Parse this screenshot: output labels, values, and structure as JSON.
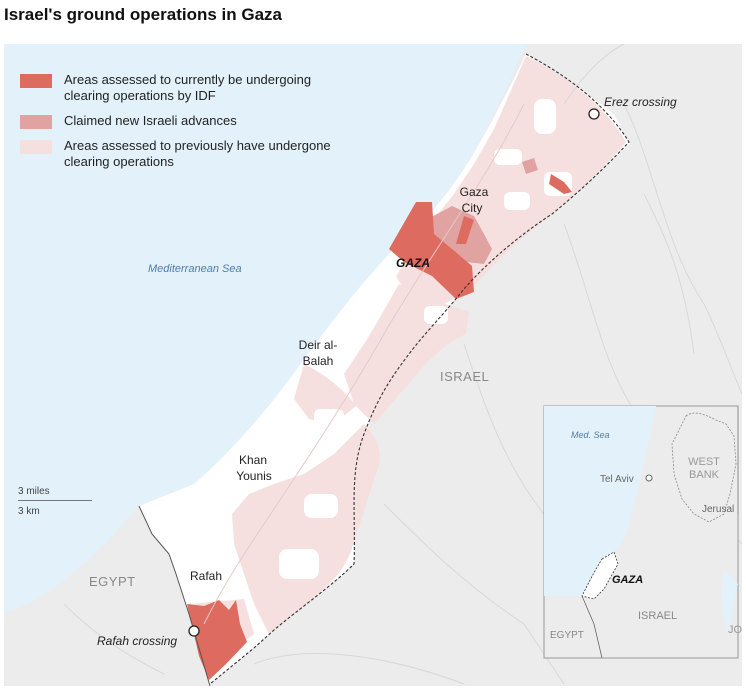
{
  "title": "Israel's ground operations in Gaza",
  "legend": [
    {
      "label": "Areas assessed to currently be undergoing clearing operations by IDF",
      "color": "#dd6b5f"
    },
    {
      "label": "Claimed new Israeli advances",
      "color": "#e0a3a2"
    },
    {
      "label": "Areas assessed to previously have undergone clearing operations",
      "color": "#f6e0df"
    }
  ],
  "labels": {
    "sea": "Mediterranean Sea",
    "erez": "Erez crossing",
    "gaza_city": [
      "Gaza",
      "City"
    ],
    "gaza": "GAZA",
    "deir": [
      "Deir al-",
      "Balah"
    ],
    "israel": "ISRAEL",
    "khan": [
      "Khan",
      "Younis"
    ],
    "egypt": "EGYPT",
    "rafah": "Rafah",
    "rafah_crossing": "Rafah crossing"
  },
  "scale": {
    "miles": "3 miles",
    "km": "3 km"
  },
  "inset": {
    "sea": "Med. Sea",
    "tel_aviv": "Tel Aviv",
    "west_bank": [
      "WEST",
      "BANK"
    ],
    "jerusalem": "Jerusal",
    "gaza": "GAZA",
    "israel": "ISRAEL",
    "egypt": "EGYPT",
    "jordan": "JO"
  },
  "colors": {
    "sea": "#e3f1fb",
    "land": "#ececec",
    "strip": "#ffffff",
    "current": "#dd6b5f",
    "advance": "#e0a3a2",
    "previous": "#f6e0df",
    "road": "#d8d8d8",
    "border": "#444444"
  }
}
